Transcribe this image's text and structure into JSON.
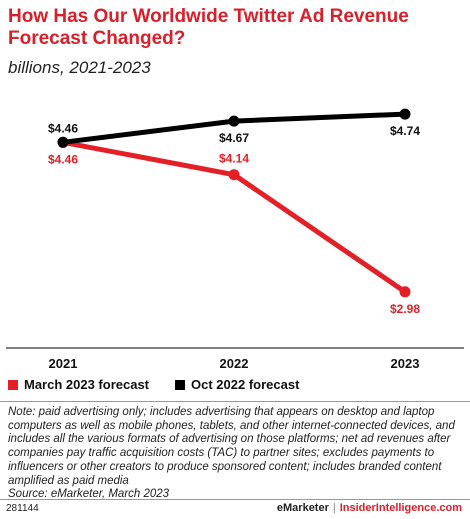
{
  "header": {
    "title": "How Has Our Worldwide Twitter Ad Revenue Forecast Changed?",
    "subtitle": "billions, 2021-2023"
  },
  "chart_data": {
    "type": "line",
    "x": [
      "2021",
      "2022",
      "2023"
    ],
    "ylim": [
      2.75,
      4.82
    ],
    "grid": false,
    "legend_position": "bottom-left",
    "series": [
      {
        "name": "March 2023 forecast",
        "color": "#e41f26",
        "values": [
          4.46,
          4.14,
          2.98
        ],
        "labels": [
          "$4.46",
          "$4.14",
          "$2.98"
        ]
      },
      {
        "name": "Oct 2022 forecast",
        "color": "#000000",
        "values": [
          4.46,
          4.67,
          4.74
        ],
        "labels": [
          "$4.46",
          "$4.67",
          "$4.74"
        ]
      }
    ]
  },
  "legend": {
    "march_label": "March 2023 forecast",
    "oct_label": "Oct 2022 forecast"
  },
  "note": "Note: paid advertising only; includes advertising that appears on desktop and laptop computers as well as mobile phones, tablets, and other internet-connected devices, and includes all the various formats of advertising on those platforms; net ad revenues after companies pay traffic acquisition costs (TAC) to partner sites; excludes payments to influencers or other creators to produce sponsored content; includes branded content amplified as paid media",
  "source": "Source: eMarketer, March 2023",
  "footer": {
    "chart_id": "281144",
    "brand_left": "eMarketer",
    "separator": "|",
    "brand_right": "InsiderIntelligence.com"
  }
}
